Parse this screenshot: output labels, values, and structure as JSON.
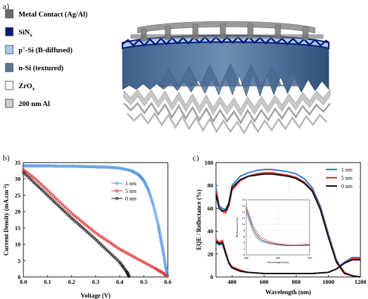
{
  "panel_labels": {
    "a": "a)",
    "b": "b)",
    "c": "c)"
  },
  "legend_a": [
    {
      "label": "Metal Contact (Ag/Al)",
      "color": "#6b6b6b"
    },
    {
      "label": "SiN",
      "sub": "x",
      "color": "#0a1a7a"
    },
    {
      "label": "p",
      "sup": "+",
      "rest": "-Si (B-diffused)",
      "color": "#a8cdf0"
    },
    {
      "label": "n-Si (textured)",
      "color": "#5a7899"
    },
    {
      "label": "ZrO",
      "sub": "x",
      "color": "#ffffff"
    },
    {
      "label": "200 nm Al",
      "color": "#cfcfcf"
    }
  ],
  "chart_data": [
    {
      "type": "line",
      "xlabel": "Voltage (V)",
      "ylabel": "Current Density (mA.cm",
      "ylabel_sup": "-2",
      "ylabel_end": ")",
      "xlim": [
        0.0,
        0.6
      ],
      "ylim": [
        0,
        35
      ],
      "xticks": [
        "0.0",
        "0.1",
        "0.2",
        "0.3",
        "0.4",
        "0.5",
        "0.6"
      ],
      "yticks": [
        "0",
        "5",
        "10",
        "15",
        "20",
        "25",
        "30",
        "35"
      ],
      "series": [
        {
          "name": "1 nm",
          "color": "#4a8fe0",
          "x": [
            0.0,
            0.05,
            0.1,
            0.15,
            0.2,
            0.25,
            0.3,
            0.35,
            0.4,
            0.45,
            0.48,
            0.5,
            0.52,
            0.54,
            0.56,
            0.57,
            0.58,
            0.59,
            0.6
          ],
          "y": [
            34.0,
            34.0,
            34.0,
            33.9,
            33.9,
            33.8,
            33.7,
            33.6,
            33.3,
            32.5,
            31.2,
            29.5,
            26.5,
            22.0,
            16.0,
            12.0,
            8.0,
            3.5,
            0.0
          ]
        },
        {
          "name": "5 nm",
          "color": "#e03030",
          "x": [
            0.0,
            0.05,
            0.1,
            0.15,
            0.2,
            0.25,
            0.3,
            0.35,
            0.4,
            0.45,
            0.5,
            0.55,
            0.58,
            0.6
          ],
          "y": [
            32.8,
            30.0,
            26.5,
            23.0,
            19.5,
            16.5,
            13.5,
            11.0,
            8.5,
            6.5,
            4.5,
            2.5,
            1.2,
            0.0
          ]
        },
        {
          "name": "0 nm",
          "color": "#111111",
          "x": [
            0.0,
            0.05,
            0.1,
            0.15,
            0.2,
            0.25,
            0.3,
            0.35,
            0.4,
            0.43,
            0.44
          ],
          "y": [
            32.0,
            28.5,
            25.0,
            21.5,
            18.0,
            14.8,
            11.5,
            8.0,
            4.5,
            1.5,
            0.0
          ]
        }
      ],
      "legend": "right"
    },
    {
      "type": "line",
      "xlabel": "Wavelength (nm)",
      "ylabel": "EQE / Reflectance (%)",
      "xlim": [
        300,
        1200
      ],
      "ylim": [
        0,
        100
      ],
      "xticks": [
        "400",
        "600",
        "800",
        "1000",
        "1200"
      ],
      "yticks": [
        "0",
        "20",
        "40",
        "60",
        "80",
        "100"
      ],
      "series": [
        {
          "name": "1 nm",
          "color": "#2a7ad8",
          "eqe": {
            "x": [
              300,
              320,
              340,
              360,
              380,
              400,
              450,
              500,
              550,
              600,
              650,
              700,
              750,
              800,
              850,
              900,
              950,
              1000,
              1050,
              1100,
              1150,
              1200
            ],
            "y": [
              78,
              62,
              60,
              59,
              65,
              80,
              88,
              91,
              93,
              94,
              94,
              93,
              92,
              90,
              86,
              78,
              62,
              38,
              15,
              4,
              1,
              0
            ]
          },
          "refl": {
            "x": [
              300,
              320,
              340,
              360,
              380,
              400,
              450,
              500,
              600,
              700,
              800,
              900,
              1000,
              1050,
              1100,
              1150,
              1200
            ],
            "y": [
              30,
              28,
              29,
              20,
              12,
              8,
              5,
              4,
              3,
              3,
              3,
              3,
              4,
              7,
              13,
              17,
              17
            ]
          }
        },
        {
          "name": "5 nm",
          "color": "#e03030",
          "eqe": {
            "x": [
              300,
              320,
              340,
              360,
              380,
              400,
              450,
              500,
              550,
              600,
              650,
              700,
              750,
              800,
              850,
              900,
              950,
              1000,
              1050,
              1100,
              1150,
              1200
            ],
            "y": [
              75,
              60,
              57,
              56,
              62,
              76,
              84,
              88,
              90,
              91,
              91,
              90,
              89,
              87,
              83,
              76,
              60,
              36,
              14,
              4,
              1,
              0
            ]
          },
          "refl": {
            "x": [
              300,
              320,
              340,
              360,
              380,
              400,
              450,
              500,
              600,
              700,
              800,
              900,
              1000,
              1050,
              1100,
              1150,
              1200
            ],
            "y": [
              33,
              30,
              32,
              22,
              13,
              9,
              6,
              4,
              3,
              3,
              3,
              3,
              4,
              7,
              12,
              16,
              16
            ]
          }
        },
        {
          "name": "0 nm",
          "color": "#111111",
          "eqe": {
            "x": [
              300,
              320,
              340,
              360,
              380,
              400,
              450,
              500,
              550,
              600,
              650,
              700,
              750,
              800,
              850,
              900,
              950,
              1000,
              1050,
              1100,
              1150,
              1200
            ],
            "y": [
              72,
              60,
              58,
              58,
              64,
              78,
              85,
              88,
              89,
              90,
              90,
              89,
              88,
              86,
              82,
              75,
              59,
              35,
              13,
              3,
              1,
              0
            ]
          },
          "refl": {
            "x": [
              300,
              320,
              340,
              360,
              380,
              400,
              450,
              500,
              600,
              700,
              800,
              900,
              1000,
              1050,
              1100,
              1150,
              1200
            ],
            "y": [
              31,
              29,
              30,
              21,
              12,
              8,
              5,
              4,
              3,
              3,
              3,
              3,
              4,
              7,
              12,
              15,
              15
            ]
          }
        }
      ],
      "legend": "top-right",
      "inset": {
        "xlabel": "Wavelength (nm)",
        "ylabel": "Reflectance (%)",
        "xlim": [
          300,
          700
        ],
        "ylim": [
          0,
          18
        ],
        "xticks": [
          "300",
          "500",
          "700"
        ],
        "yticks": [
          "0",
          "2",
          "4",
          "6",
          "8",
          "10",
          "12",
          "14",
          "16",
          "18"
        ],
        "series": [
          {
            "name": "1 nm",
            "color": "#2a7ad8",
            "x": [
              300,
              320,
              340,
              360,
              380,
              400,
              450,
              500,
              550,
              600,
              650,
              700
            ],
            "y": [
              14,
              11,
              8,
              6,
              5,
              4.3,
              3.6,
              3.2,
              3.0,
              3.0,
              3.0,
              3.0
            ]
          },
          {
            "name": "5 nm",
            "color": "#e03030",
            "x": [
              300,
              320,
              340,
              360,
              380,
              400,
              450,
              500,
              550,
              600,
              650,
              700
            ],
            "y": [
              16,
              13,
              10,
              8,
              6.5,
              5.5,
              4.3,
              3.7,
              3.4,
              3.3,
              3.4,
              3.5
            ]
          },
          {
            "name": "0 nm",
            "color": "#111111",
            "x": [
              300,
              320,
              340,
              360,
              380,
              400,
              450,
              500,
              550,
              600,
              650,
              700
            ],
            "y": [
              15,
              12,
              9,
              7,
              5.6,
              4.8,
              3.9,
              3.4,
              3.1,
              3.0,
              3.1,
              3.2
            ]
          }
        ]
      }
    }
  ]
}
